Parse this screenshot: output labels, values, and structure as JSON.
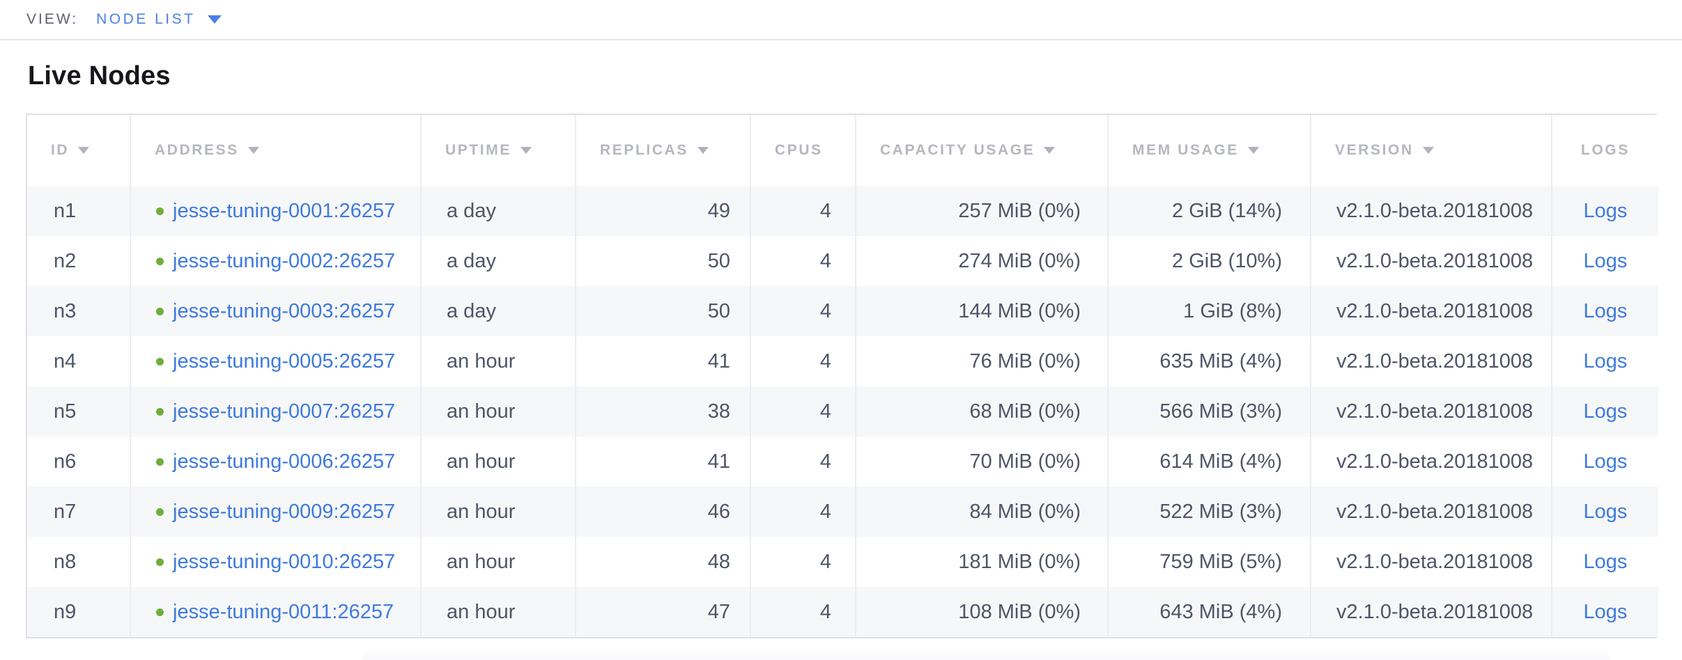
{
  "view_bar": {
    "label": "VIEW:",
    "selected": "NODE LIST"
  },
  "page": {
    "title": "Live Nodes"
  },
  "table": {
    "columns": [
      {
        "field": "id",
        "label": "ID",
        "sortable": true
      },
      {
        "field": "address",
        "label": "ADDRESS",
        "sortable": true
      },
      {
        "field": "uptime",
        "label": "UPTIME",
        "sortable": true
      },
      {
        "field": "replicas",
        "label": "REPLICAS",
        "sortable": true
      },
      {
        "field": "cpus",
        "label": "CPUS",
        "sortable": false
      },
      {
        "field": "capacity_usage",
        "label": "CAPACITY USAGE",
        "sortable": true
      },
      {
        "field": "mem_usage",
        "label": "MEM USAGE",
        "sortable": true
      },
      {
        "field": "version",
        "label": "VERSION",
        "sortable": true
      },
      {
        "field": "logs",
        "label": "LOGS",
        "sortable": false
      }
    ],
    "rows": [
      {
        "id": "n1",
        "status": "healthy",
        "address": "jesse-tuning-0001:26257",
        "uptime": "a day",
        "replicas": "49",
        "cpus": "4",
        "capacity_usage": "257 MiB (0%)",
        "mem_usage": "2 GiB (14%)",
        "version": "v2.1.0-beta.20181008",
        "logs_label": "Logs"
      },
      {
        "id": "n2",
        "status": "healthy",
        "address": "jesse-tuning-0002:26257",
        "uptime": "a day",
        "replicas": "50",
        "cpus": "4",
        "capacity_usage": "274 MiB (0%)",
        "mem_usage": "2 GiB (10%)",
        "version": "v2.1.0-beta.20181008",
        "logs_label": "Logs"
      },
      {
        "id": "n3",
        "status": "healthy",
        "address": "jesse-tuning-0003:26257",
        "uptime": "a day",
        "replicas": "50",
        "cpus": "4",
        "capacity_usage": "144 MiB (0%)",
        "mem_usage": "1 GiB (8%)",
        "version": "v2.1.0-beta.20181008",
        "logs_label": "Logs"
      },
      {
        "id": "n4",
        "status": "healthy",
        "address": "jesse-tuning-0005:26257",
        "uptime": "an hour",
        "replicas": "41",
        "cpus": "4",
        "capacity_usage": "76 MiB (0%)",
        "mem_usage": "635 MiB (4%)",
        "version": "v2.1.0-beta.20181008",
        "logs_label": "Logs"
      },
      {
        "id": "n5",
        "status": "healthy",
        "address": "jesse-tuning-0007:26257",
        "uptime": "an hour",
        "replicas": "38",
        "cpus": "4",
        "capacity_usage": "68 MiB (0%)",
        "mem_usage": "566 MiB (3%)",
        "version": "v2.1.0-beta.20181008",
        "logs_label": "Logs"
      },
      {
        "id": "n6",
        "status": "healthy",
        "address": "jesse-tuning-0006:26257",
        "uptime": "an hour",
        "replicas": "41",
        "cpus": "4",
        "capacity_usage": "70 MiB (0%)",
        "mem_usage": "614 MiB (4%)",
        "version": "v2.1.0-beta.20181008",
        "logs_label": "Logs"
      },
      {
        "id": "n7",
        "status": "healthy",
        "address": "jesse-tuning-0009:26257",
        "uptime": "an hour",
        "replicas": "46",
        "cpus": "4",
        "capacity_usage": "84 MiB (0%)",
        "mem_usage": "522 MiB (3%)",
        "version": "v2.1.0-beta.20181008",
        "logs_label": "Logs"
      },
      {
        "id": "n8",
        "status": "healthy",
        "address": "jesse-tuning-0010:26257",
        "uptime": "an hour",
        "replicas": "48",
        "cpus": "4",
        "capacity_usage": "181 MiB (0%)",
        "mem_usage": "759 MiB (5%)",
        "version": "v2.1.0-beta.20181008",
        "logs_label": "Logs"
      },
      {
        "id": "n9",
        "status": "healthy",
        "address": "jesse-tuning-0011:26257",
        "uptime": "an hour",
        "replicas": "47",
        "cpus": "4",
        "capacity_usage": "108 MiB (0%)",
        "mem_usage": "643 MiB (4%)",
        "version": "v2.1.0-beta.20181008",
        "logs_label": "Logs"
      }
    ]
  },
  "colors": {
    "link_blue": "#3e7ade",
    "selector_blue": "#4a80e8",
    "healthy_green": "#6fae3a",
    "header_gray": "#b5b7bf",
    "body_text": "#4d5567",
    "stripe_gray": "#f6f7f8"
  }
}
